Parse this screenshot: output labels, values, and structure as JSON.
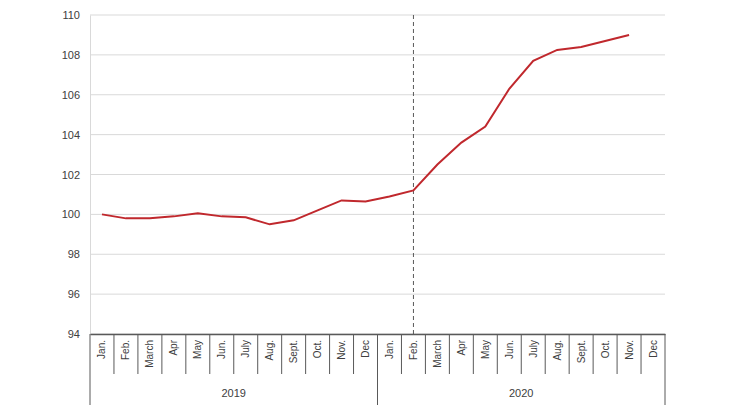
{
  "chart_data": {
    "type": "line",
    "categories": [
      "Jan.",
      "Feb.",
      "March",
      "Apr",
      "May",
      "Jun.",
      "July",
      "Aug.",
      "Sept.",
      "Oct.",
      "Nov.",
      "Dec",
      "Jan.",
      "Feb.",
      "March",
      "Apr",
      "May",
      "Jun.",
      "July",
      "Aug.",
      "Sept.",
      "Oct.",
      "Nov.",
      "Dec"
    ],
    "values": [
      100.0,
      99.8,
      99.8,
      99.9,
      100.05,
      99.9,
      99.85,
      99.5,
      99.7,
      100.2,
      100.7,
      100.65,
      100.9,
      101.2,
      102.5,
      103.6,
      104.4,
      106.3,
      107.7,
      108.25,
      108.4,
      108.7,
      109.0,
      null
    ],
    "color": "#c0282d",
    "groups": [
      {
        "label": "2019",
        "count": 12
      },
      {
        "label": "2020",
        "count": 12
      }
    ],
    "vline_at": 13,
    "ylim": [
      94,
      110
    ],
    "yticks": [
      94,
      96,
      98,
      100,
      102,
      104,
      106,
      108,
      110
    ],
    "grid": true
  }
}
